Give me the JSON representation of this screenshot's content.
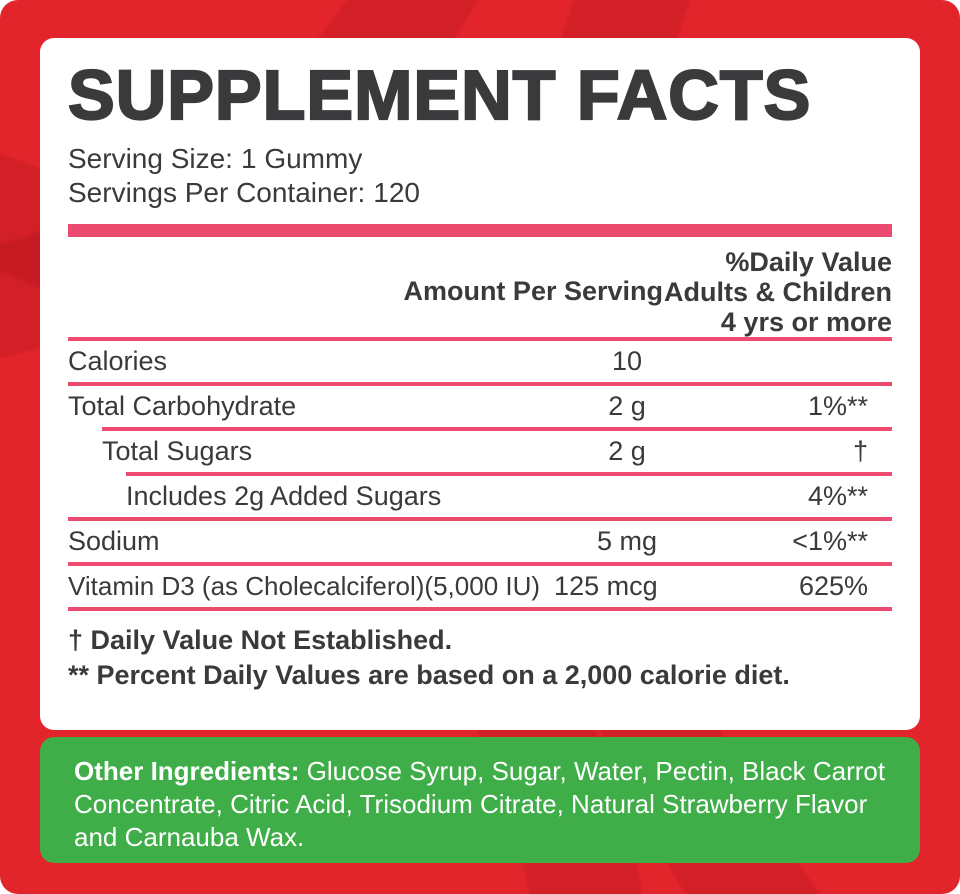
{
  "title": "SUPPLEMENT FACTS",
  "serving": {
    "size_label": "Serving Size:",
    "size_value": "1 Gummy",
    "per_container_label": "Servings Per Container:",
    "per_container_value": "120"
  },
  "table": {
    "col_amount": "Amount Per Serving",
    "col_dv_line1": "%Daily Value",
    "col_dv_line2": "Adults & Children",
    "col_dv_line3": "4 yrs or more",
    "rows": [
      {
        "name": "Calories",
        "amount": "10",
        "dv": "",
        "indent": 0
      },
      {
        "name": "Total Carbohydrate",
        "amount": "2 g",
        "dv": "1%**",
        "indent": 0
      },
      {
        "name": "Total Sugars",
        "amount": "2 g",
        "dv": "†",
        "indent": 1
      },
      {
        "name": "Includes 2g Added Sugars",
        "amount": "",
        "dv": "4%**",
        "indent": 2
      },
      {
        "name": "Sodium",
        "amount": "5 mg",
        "dv": "<1%**",
        "indent": 0
      },
      {
        "name": "Vitamin D3 (as Cholecalciferol)(5,000 IU)",
        "amount": "125 mcg",
        "dv": "625%",
        "indent": 0
      }
    ]
  },
  "footnotes": [
    "† Daily Value Not Established.",
    "** Percent Daily Values are based on a 2,000 calorie diet."
  ],
  "other_ingredients": {
    "label": "Other Ingredients:",
    "text": "Glucose Syrup, Sugar, Water, Pectin, Black Carrot Concentrate, Citric Acid, Trisodium Citrate, Natural Strawberry Flavor and Carnauba Wax."
  },
  "colors": {
    "background_red": "#e2242b",
    "accent_pink": "#ec4a6e",
    "green": "#3fae49",
    "text_dark": "#3a3a3c"
  }
}
